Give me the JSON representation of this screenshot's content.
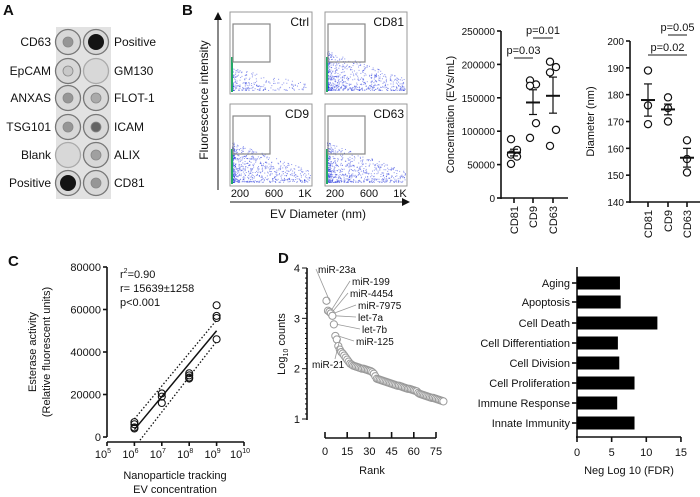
{
  "panel_labels": [
    "A",
    "B",
    "C",
    "D"
  ],
  "panel_a": {
    "rows": [
      {
        "left": "CD63",
        "right": "Positive",
        "left_intensity": 0.35,
        "right_intensity": 1.0
      },
      {
        "left": "EpCAM",
        "right": "GM130",
        "left_intensity": 0.1,
        "right_intensity": 0.0
      },
      {
        "left": "ANXAS",
        "right": "FLOT-1",
        "left_intensity": 0.35,
        "right_intensity": 0.25
      },
      {
        "left": "TSG101",
        "right": "ICAM",
        "left_intensity": 0.35,
        "right_intensity": 0.6
      },
      {
        "left": "Blank",
        "right": "ALIX",
        "left_intensity": 0.0,
        "right_intensity": 0.3
      },
      {
        "left": "Positive",
        "right": "CD81",
        "left_intensity": 1.0,
        "right_intensity": 0.35
      }
    ]
  },
  "panel_b_flow": {
    "plots": [
      "Ctrl",
      "CD81",
      "CD9",
      "CD63"
    ],
    "x_ticks": [
      "200",
      "600",
      "1K"
    ],
    "xlabel": "EV Diameter (nm)",
    "ylabel": "Fluorescence intensity",
    "colors": {
      "dots": "#2233dd",
      "core": "#22aa66"
    }
  },
  "chart_data": [
    {
      "type": "scatter",
      "id": "concentration",
      "categories": [
        "CD81",
        "CD9",
        "CD63"
      ],
      "ylabel": "Concentration (EVs/mL)",
      "ylim": [
        0,
        250000
      ],
      "yticks": [
        "0",
        "50000",
        "100000",
        "150000",
        "200000",
        "250000"
      ],
      "series": [
        {
          "category": "CD81",
          "points": [
            88000,
            72000,
            65000,
            62000,
            51000
          ],
          "mean": 68000,
          "sem": [
            63000,
            73000
          ]
        },
        {
          "category": "CD9",
          "points": [
            176000,
            170000,
            168000,
            112000,
            90000
          ],
          "mean": 143000,
          "sem": [
            125000,
            162000
          ]
        },
        {
          "category": "CD63",
          "points": [
            204000,
            196000,
            188000,
            102000,
            78000
          ],
          "mean": 153000,
          "sem": [
            127000,
            181000
          ]
        }
      ],
      "comparisons": [
        {
          "a": "CD81",
          "b": "CD9",
          "label": "p=0.03"
        },
        {
          "a": "CD9",
          "b": "CD63",
          "label": "p=0.01"
        }
      ]
    },
    {
      "type": "scatter",
      "id": "diameter",
      "categories": [
        "CD81",
        "CD9",
        "CD63"
      ],
      "ylabel": "Diameter (nm)",
      "ylim": [
        140,
        200
      ],
      "yticks": [
        "140",
        "150",
        "160",
        "170",
        "180",
        "190",
        "200"
      ],
      "series": [
        {
          "category": "CD81",
          "points": [
            189,
            176,
            169
          ],
          "mean": 178,
          "sem": [
            172,
            184
          ]
        },
        {
          "category": "CD9",
          "points": [
            179,
            175,
            170
          ],
          "mean": 174.5,
          "sem": [
            172.5,
            176.5
          ]
        },
        {
          "category": "CD63",
          "points": [
            163,
            156,
            151
          ],
          "mean": 156.5,
          "sem": [
            153,
            160
          ]
        }
      ],
      "comparisons": [
        {
          "a": "CD81",
          "b": "CD63",
          "label": "p=0.02"
        },
        {
          "a": "CD9",
          "b": "CD63",
          "label": "p=0.05"
        }
      ]
    },
    {
      "type": "scatter",
      "id": "esterase",
      "xscale": "log",
      "xlim": [
        100000,
        10000000000
      ],
      "xtick_exponents": [
        "5",
        "6",
        "7",
        "8",
        "9",
        "10"
      ],
      "ylim": [
        0,
        80000
      ],
      "yticks": [
        "0",
        "20000",
        "40000",
        "60000",
        "80000"
      ],
      "ylabel": [
        "Esterase activity",
        "(Relative fluorescent units)"
      ],
      "xlabel": [
        "Nanoparticle tracking",
        "EV concentration"
      ],
      "points": [
        [
          1000000,
          7000
        ],
        [
          1000000,
          6000
        ],
        [
          1000000,
          4500
        ],
        [
          1000000,
          4000
        ],
        [
          10000000,
          20500
        ],
        [
          10000000,
          19000
        ],
        [
          10000000,
          16000
        ],
        [
          100000000,
          30000
        ],
        [
          100000000,
          29000
        ],
        [
          100000000,
          28000
        ],
        [
          100000000,
          27500
        ],
        [
          1000000000,
          62000
        ],
        [
          1000000000,
          57000
        ],
        [
          1000000000,
          56000
        ],
        [
          1000000000,
          46000
        ]
      ],
      "fit": {
        "x": [
          1000000,
          1000000000
        ],
        "y": [
          3500,
          50000
        ],
        "ci_offset": 5000
      },
      "annotations": [
        "=0.90",
        "r= 15639±1258",
        "p<0.001"
      ],
      "annotation_r2_prefix": "r",
      "annotation_r2_sup": "2"
    },
    {
      "type": "scatter",
      "id": "mirna-rank",
      "xlabel": "Rank",
      "ylabel_main": "Log",
      "ylabel_sub": "10",
      "ylabel_rest": " counts",
      "xlim": [
        0,
        80
      ],
      "ylim": [
        1,
        4
      ],
      "xticks": [
        "0",
        "15",
        "30",
        "45",
        "60",
        "75"
      ],
      "yticks": [
        "1",
        "2",
        "3",
        "4"
      ],
      "values": [
        3.35,
        3.15,
        3.13,
        3.1,
        3.05,
        2.88,
        2.65,
        2.58,
        2.45,
        2.38,
        2.33,
        2.3,
        2.26,
        2.22,
        2.18,
        2.14,
        2.1,
        2.08,
        2.06,
        2.05,
        2.04,
        2.03,
        2.02,
        2.01,
        2.0,
        2.0,
        1.99,
        1.98,
        1.97,
        1.96,
        1.95,
        1.93,
        1.9,
        1.85,
        1.8,
        1.79,
        1.78,
        1.77,
        1.76,
        1.75,
        1.74,
        1.73,
        1.72,
        1.71,
        1.7,
        1.69,
        1.68,
        1.67,
        1.66,
        1.66,
        1.65,
        1.64,
        1.63,
        1.62,
        1.61,
        1.6,
        1.6,
        1.59,
        1.58,
        1.57,
        1.56,
        1.55,
        1.52,
        1.5,
        1.49,
        1.48,
        1.47,
        1.46,
        1.45,
        1.44,
        1.43,
        1.42,
        1.42,
        1.41,
        1.4,
        1.39,
        1.38,
        1.37,
        1.36,
        1.35
      ],
      "labels": [
        {
          "text": "miR-23a",
          "rank": 1
        },
        {
          "text": "miR-199",
          "rank": 2
        },
        {
          "text": "miR-4454",
          "rank": 3
        },
        {
          "text": "miR-7975",
          "rank": 4
        },
        {
          "text": "let-7a",
          "rank": 5
        },
        {
          "text": "let-7b",
          "rank": 6
        },
        {
          "text": "miR-125",
          "rank": 7
        },
        {
          "text": "miR-21",
          "rank": 8
        }
      ]
    },
    {
      "type": "bar",
      "id": "go-terms",
      "orientation": "horizontal",
      "categories": [
        "Aging",
        "Apoptosis",
        "Cell Death",
        "Cell Differentiation",
        "Cell Division",
        "Cell Proliferation",
        "Immune Response",
        "Innate Immunity"
      ],
      "values": [
        6.2,
        6.3,
        11.6,
        5.9,
        6.1,
        8.3,
        5.8,
        8.3
      ],
      "xlabel": "Neg Log 10 (FDR)",
      "xlim": [
        0,
        15
      ],
      "xticks": [
        "0",
        "5",
        "10",
        "15"
      ],
      "color": "#000000"
    }
  ]
}
